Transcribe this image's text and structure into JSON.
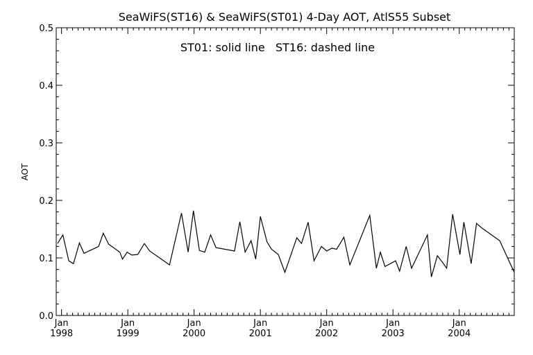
{
  "chart_data": {
    "type": "line",
    "title": "SeaWiFS(ST16) & SeaWiFS(ST01) 4-Day AOT, AtlS55 Subset",
    "annotation": "ST01: solid line   ST16: dashed line",
    "xlabel": "",
    "ylabel": "AOT",
    "ylim": [
      0.0,
      0.5
    ],
    "xlim": [
      1997.92,
      2004.83
    ],
    "yticks": [
      "0.0",
      "0.1",
      "0.2",
      "0.3",
      "0.4",
      "0.5"
    ],
    "xtick_years": [
      1998,
      1999,
      2000,
      2001,
      2002,
      2003,
      2004
    ],
    "xtick_month": "Jan",
    "grid": false,
    "series": [
      {
        "name": "ST01",
        "style": "solid",
        "x": [
          1997.94,
          1998.02,
          1998.11,
          1998.18,
          1998.27,
          1998.34,
          1998.56,
          1998.63,
          1998.71,
          1998.88,
          1998.92,
          1998.99,
          1999.06,
          1999.15,
          1999.25,
          1999.33,
          1999.63,
          1999.81,
          1999.91,
          1999.99,
          2000.08,
          2000.16,
          2000.25,
          2000.33,
          2000.61,
          2000.69,
          2000.77,
          2000.86,
          2000.93,
          2001.0,
          2001.1,
          2001.17,
          2001.27,
          2001.37,
          2001.55,
          2001.62,
          2001.72,
          2001.81,
          2001.92,
          2002.0,
          2002.08,
          2002.15,
          2002.26,
          2002.35,
          2002.65,
          2002.75,
          2002.81,
          2002.88,
          2002.96,
          2003.04,
          2003.1,
          2003.2,
          2003.28,
          2003.52,
          2003.58,
          2003.67,
          2003.75,
          2003.81,
          2003.9,
          2004.01,
          2004.07,
          2004.18,
          2004.26,
          2004.34,
          2004.61,
          2004.73,
          2004.83
        ],
        "values": [
          0.125,
          0.14,
          0.095,
          0.09,
          0.126,
          0.108,
          0.12,
          0.143,
          0.124,
          0.11,
          0.098,
          0.11,
          0.105,
          0.106,
          0.125,
          0.112,
          0.088,
          0.178,
          0.11,
          0.182,
          0.113,
          0.11,
          0.14,
          0.118,
          0.112,
          0.163,
          0.11,
          0.13,
          0.098,
          0.172,
          0.128,
          0.115,
          0.106,
          0.075,
          0.135,
          0.125,
          0.162,
          0.095,
          0.12,
          0.112,
          0.117,
          0.115,
          0.136,
          0.088,
          0.174,
          0.082,
          0.11,
          0.085,
          0.09,
          0.095,
          0.077,
          0.12,
          0.082,
          0.14,
          0.067,
          0.104,
          0.092,
          0.082,
          0.176,
          0.106,
          0.162,
          0.09,
          0.16,
          0.152,
          0.13,
          0.1,
          0.075
        ]
      }
    ]
  }
}
